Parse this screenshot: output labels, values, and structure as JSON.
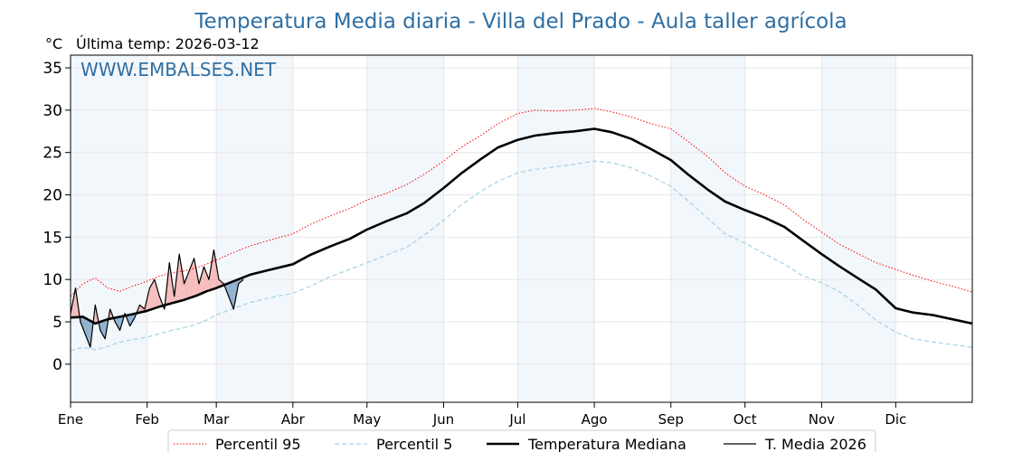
{
  "chart_data": {
    "type": "line",
    "title": "Temperatura Media diaria - Villa del Prado - Aula taller agrícola",
    "unit_label": "°C",
    "last_temp_label": "Última temp: 2026-03-12",
    "watermark": "WWW.EMBALSES.NET",
    "ylim": [
      -4.5,
      36.5
    ],
    "yticks": [
      0,
      5,
      10,
      15,
      20,
      25,
      30,
      35
    ],
    "xlim": [
      0,
      365
    ],
    "months": [
      {
        "label": "Ene",
        "day": 0
      },
      {
        "label": "Feb",
        "day": 31
      },
      {
        "label": "Mar",
        "day": 59
      },
      {
        "label": "Abr",
        "day": 90
      },
      {
        "label": "May",
        "day": 120
      },
      {
        "label": "Jun",
        "day": 151
      },
      {
        "label": "Jul",
        "day": 181
      },
      {
        "label": "Ago",
        "day": 212
      },
      {
        "label": "Sep",
        "day": 243
      },
      {
        "label": "Oct",
        "day": 273
      },
      {
        "label": "Nov",
        "day": 304
      },
      {
        "label": "Dic",
        "day": 334
      }
    ],
    "shaded_months": [
      0,
      2,
      4,
      6,
      8,
      10
    ],
    "grid": true,
    "legend_position": "bottom-center",
    "series": [
      {
        "name": "Percentil 95",
        "color": "#ff0000",
        "style": "dotted",
        "x": [
          0,
          5,
          10,
          15,
          20,
          25,
          31,
          36,
          41,
          46,
          51,
          55,
          59,
          66,
          73,
          80,
          90,
          97,
          105,
          113,
          120,
          128,
          136,
          143,
          151,
          158,
          166,
          173,
          181,
          188,
          196,
          204,
          212,
          219,
          227,
          235,
          243,
          250,
          258,
          265,
          273,
          281,
          289,
          296,
          304,
          311,
          319,
          326,
          334,
          341,
          349,
          357,
          365
        ],
        "values": [
          8.0,
          9.5,
          10.2,
          9.0,
          8.6,
          9.2,
          9.8,
          10.4,
          10.8,
          11.0,
          11.4,
          11.8,
          12.3,
          13.2,
          14.0,
          14.6,
          15.4,
          16.5,
          17.5,
          18.4,
          19.4,
          20.2,
          21.2,
          22.4,
          24.0,
          25.6,
          27.0,
          28.4,
          29.6,
          30.0,
          29.9,
          30.0,
          30.2,
          29.8,
          29.2,
          28.4,
          27.8,
          26.3,
          24.5,
          22.6,
          21.0,
          20.0,
          18.8,
          17.2,
          15.6,
          14.2,
          13.0,
          12.0,
          11.2,
          10.5,
          9.8,
          9.2,
          8.5
        ]
      },
      {
        "name": "Percentil 5",
        "color": "#a8d4e6",
        "style": "dashed",
        "x": [
          0,
          5,
          10,
          15,
          20,
          25,
          31,
          36,
          41,
          46,
          51,
          55,
          59,
          66,
          73,
          80,
          90,
          97,
          105,
          113,
          120,
          128,
          136,
          143,
          151,
          158,
          166,
          173,
          181,
          188,
          196,
          204,
          212,
          219,
          227,
          235,
          243,
          250,
          258,
          265,
          273,
          281,
          289,
          296,
          304,
          311,
          319,
          326,
          334,
          341,
          349,
          357,
          365
        ],
        "values": [
          1.6,
          2.0,
          1.7,
          2.1,
          2.6,
          2.9,
          3.2,
          3.6,
          4.0,
          4.3,
          4.7,
          5.2,
          5.8,
          6.6,
          7.3,
          7.8,
          8.4,
          9.2,
          10.3,
          11.2,
          12.0,
          12.9,
          13.8,
          15.2,
          17.0,
          18.8,
          20.4,
          21.6,
          22.6,
          23.0,
          23.3,
          23.6,
          24.0,
          23.8,
          23.2,
          22.2,
          21.0,
          19.3,
          17.2,
          15.4,
          14.3,
          13.0,
          11.8,
          10.5,
          9.6,
          8.6,
          6.9,
          5.2,
          3.8,
          3.0,
          2.6,
          2.3,
          2.0
        ]
      },
      {
        "name": "Temperatura Mediana",
        "color": "#000000",
        "style": "bold",
        "x": [
          0,
          5,
          10,
          15,
          20,
          25,
          31,
          36,
          41,
          46,
          51,
          55,
          59,
          66,
          73,
          80,
          90,
          97,
          105,
          113,
          120,
          128,
          136,
          143,
          151,
          158,
          166,
          173,
          181,
          188,
          196,
          204,
          212,
          219,
          227,
          235,
          243,
          250,
          258,
          265,
          273,
          281,
          289,
          296,
          304,
          311,
          319,
          326,
          334,
          341,
          349,
          357,
          365
        ],
        "values": [
          5.5,
          5.6,
          4.8,
          5.3,
          5.6,
          5.9,
          6.3,
          6.8,
          7.2,
          7.6,
          8.1,
          8.6,
          9.0,
          9.8,
          10.6,
          11.1,
          11.8,
          12.9,
          13.9,
          14.8,
          15.9,
          16.9,
          17.8,
          19.0,
          20.8,
          22.5,
          24.2,
          25.6,
          26.5,
          27.0,
          27.3,
          27.5,
          27.8,
          27.4,
          26.6,
          25.4,
          24.1,
          22.4,
          20.6,
          19.2,
          18.2,
          17.3,
          16.2,
          14.7,
          13.0,
          11.6,
          10.1,
          8.8,
          6.6,
          6.1,
          5.8,
          5.3,
          4.8
        ]
      },
      {
        "name": "T. Media 2026",
        "color": "#000000",
        "style": "solid",
        "x": [
          0,
          2,
          4,
          6,
          8,
          10,
          12,
          14,
          16,
          18,
          20,
          22,
          24,
          26,
          28,
          30,
          32,
          34,
          36,
          38,
          40,
          42,
          44,
          46,
          48,
          50,
          52,
          54,
          56,
          58,
          60,
          62,
          64,
          66,
          68,
          70
        ],
        "values": [
          6.0,
          9.0,
          5.0,
          3.5,
          2.0,
          7.0,
          4.0,
          3.0,
          6.5,
          5.0,
          4.0,
          6.0,
          4.5,
          5.5,
          7.0,
          6.5,
          9.0,
          10.0,
          8.0,
          6.5,
          12.0,
          8.0,
          13.0,
          9.5,
          11.0,
          12.5,
          9.5,
          11.5,
          10.0,
          13.5,
          10.0,
          9.5,
          8.0,
          6.5,
          9.5,
          10.0
        ]
      }
    ]
  }
}
